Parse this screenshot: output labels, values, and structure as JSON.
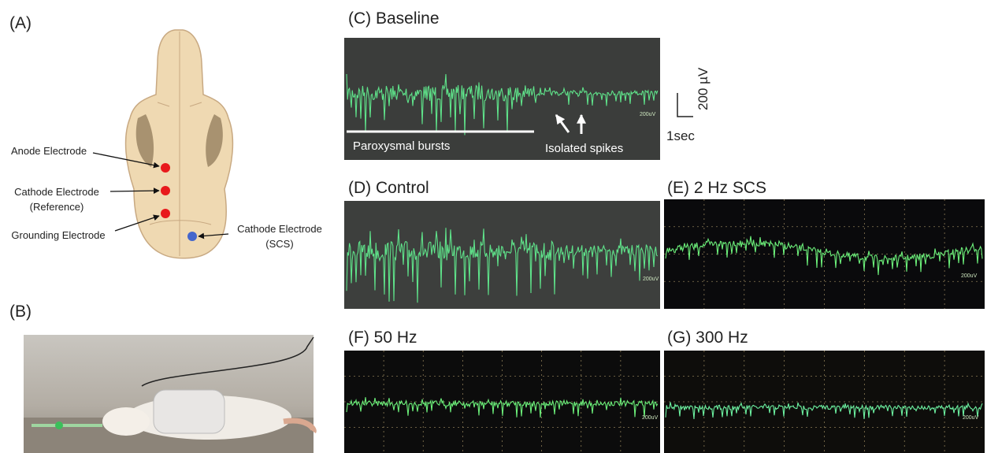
{
  "panels": {
    "a": {
      "label": "(A)",
      "electrodes": [
        {
          "lines": [
            "Anode Electrode"
          ]
        },
        {
          "lines": [
            "Cathode Electrode",
            "(Reference)"
          ]
        },
        {
          "lines": [
            "Grounding Electrode"
          ]
        },
        {
          "lines": [
            "Cathode Electrode",
            "(SCS)"
          ]
        }
      ]
    },
    "b": {
      "label": "(B)"
    },
    "c": {
      "label": "(C) Baseline",
      "burst_label": "Paroxysmal bursts",
      "spike_label": "Isolated spikes",
      "scale_v": "200 µV",
      "scale_t": "1sec"
    },
    "d": {
      "label": "(D) Control"
    },
    "e": {
      "label": "(E) 2 Hz SCS"
    },
    "f": {
      "label": "(F) 50 Hz"
    },
    "g": {
      "label": "(G) 300 Hz"
    },
    "scope_scale": "200uV"
  }
}
